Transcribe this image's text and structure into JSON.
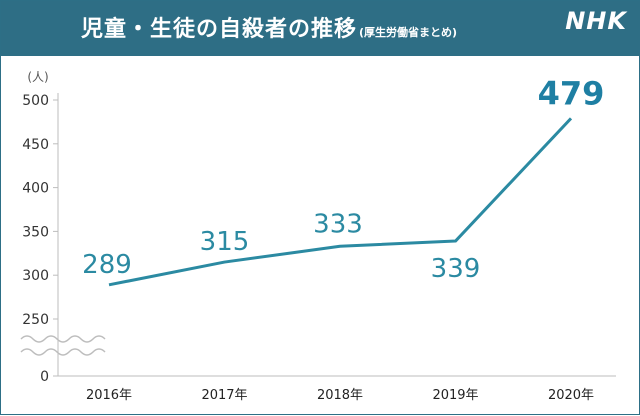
{
  "header": {
    "title": "児童・生徒の自殺者の推移",
    "subtitle": "(厚生労働省まとめ)",
    "logo": "NHK"
  },
  "colors": {
    "header_bg": "#2e6e85",
    "line": "#2b8aa2",
    "highlight_label": "#1e7fa3"
  },
  "chart_data": {
    "type": "line",
    "title": "児童・生徒の自殺者の推移",
    "subtitle": "(厚生労働省まとめ)",
    "ylabel": "(人)",
    "xlabel": "",
    "axis_break": true,
    "grid": false,
    "ylim": [
      0,
      500
    ],
    "yticks": [
      0,
      250,
      300,
      350,
      400,
      450,
      500
    ],
    "categories": [
      "2016年",
      "2017年",
      "2018年",
      "2019年",
      "2020年"
    ],
    "series": [
      {
        "values": [
          289,
          315,
          333,
          339,
          479
        ]
      }
    ],
    "data_labels": [
      "289",
      "315",
      "333",
      "339",
      "479"
    ],
    "highlight_index": 4
  }
}
